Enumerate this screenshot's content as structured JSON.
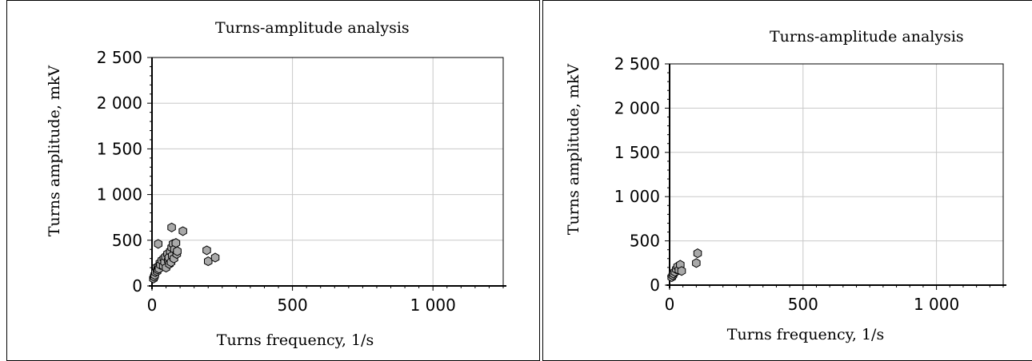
{
  "colors": {
    "grid": "#c8c8c8",
    "axis": "#000000",
    "marker_fill": "#a9a9a9",
    "marker_stroke": "#000000"
  },
  "chart_data": [
    {
      "type": "scatter",
      "title": "Turns-amplitude analysis",
      "xlabel": "Turns frequency, 1/s",
      "ylabel": "Turns amplitude, mkV",
      "xlim": [
        0,
        1250
      ],
      "ylim": [
        0,
        2500
      ],
      "xticks": [
        0,
        500,
        1000
      ],
      "yticks": [
        0,
        500,
        1000,
        1500,
        2000,
        2500
      ],
      "xtick_labels": [
        "0",
        "500",
        "1 000"
      ],
      "ytick_labels": [
        "0",
        "500",
        "1 000",
        "1 500",
        "2 000",
        "2 500"
      ],
      "grid": true,
      "legend": "none",
      "series": [
        {
          "x": [
            5,
            8,
            10,
            12,
            15,
            18,
            20,
            22,
            25,
            28,
            30,
            35,
            40,
            42,
            45,
            48,
            50,
            55,
            58,
            60,
            62,
            65,
            68,
            70,
            72,
            75,
            78,
            80,
            85,
            88,
            90,
            70,
            85,
            110,
            22,
            195,
            200,
            225
          ],
          "y": [
            80,
            100,
            120,
            150,
            200,
            160,
            180,
            210,
            190,
            250,
            230,
            280,
            220,
            300,
            260,
            320,
            200,
            350,
            280,
            310,
            240,
            380,
            260,
            420,
            330,
            460,
            300,
            400,
            470,
            350,
            380,
            640,
            470,
            600,
            460,
            390,
            270,
            310
          ]
        }
      ]
    },
    {
      "type": "scatter",
      "title": "Turns-amplitude analysis",
      "xlabel": "Turns frequency, 1/s",
      "ylabel": "Turns amplitude, mkV",
      "xlim": [
        0,
        1250
      ],
      "ylim": [
        0,
        2500
      ],
      "xticks": [
        0,
        500,
        1000
      ],
      "yticks": [
        0,
        500,
        1000,
        1500,
        2000,
        2500
      ],
      "xtick_labels": [
        "0",
        "500",
        "1 000"
      ],
      "ytick_labels": [
        "0",
        "500",
        "1 000",
        "1 500",
        "2 000",
        "2 500"
      ],
      "grid": true,
      "legend": "none",
      "series": [
        {
          "x": [
            8,
            12,
            15,
            20,
            25,
            30,
            35,
            40,
            45,
            100,
            105
          ],
          "y": [
            90,
            110,
            130,
            150,
            180,
            210,
            170,
            230,
            160,
            250,
            360
          ]
        }
      ]
    }
  ]
}
